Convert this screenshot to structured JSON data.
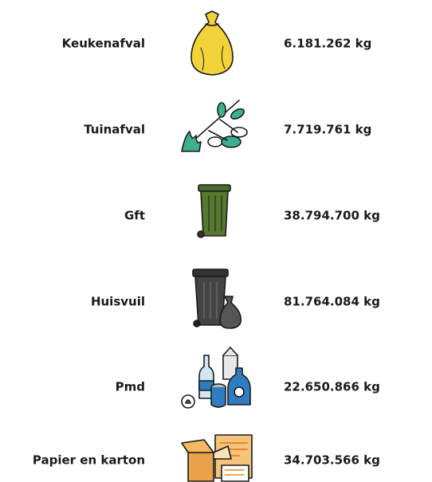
{
  "rows": [
    {
      "label": "Keukenafval",
      "amount": "6.181.262 kg"
    },
    {
      "label": "Tuinafval",
      "amount": "7.719.761 kg"
    },
    {
      "label": "Gft",
      "amount": "38.794.700 kg"
    },
    {
      "label": "Huisvuil",
      "amount": "81.764.084 kg"
    },
    {
      "label": "Pmd",
      "amount": "22.650.866 kg"
    },
    {
      "label": "Papier en karton",
      "amount": "34.703.566 kg"
    }
  ]
}
